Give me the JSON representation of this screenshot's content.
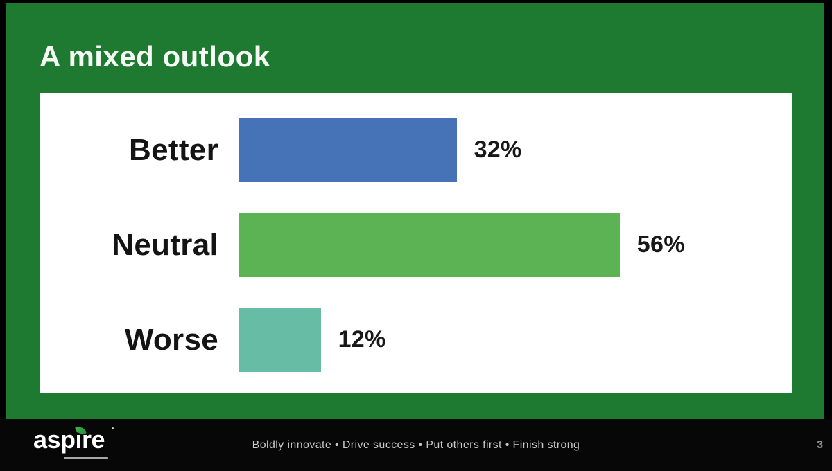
{
  "slide": {
    "title": "A mixed outlook"
  },
  "chart_data": {
    "type": "bar",
    "orientation": "horizontal",
    "title": "A mixed outlook",
    "categories": [
      "Better",
      "Neutral",
      "Worse"
    ],
    "values": [
      32,
      56,
      12
    ],
    "value_labels": [
      "32%",
      "56%",
      "12%"
    ],
    "bar_colors": [
      "#4673b8",
      "#5cb354",
      "#67bca5"
    ],
    "xlabel": "",
    "ylabel": "",
    "xlim": [
      0,
      60
    ],
    "grid": false,
    "legend": false
  },
  "footer": {
    "logo_text": "aspire",
    "motto": "Boldly innovate  •  Drive success  •  Put others first  •  Finish strong",
    "page_number": "3"
  },
  "colors": {
    "background_green": "#1e7a30",
    "panel_white": "#ffffff",
    "frame_black": "#000000",
    "footer_black": "#070707",
    "title_text": "#f5faf5",
    "bar_blue": "#4673b8",
    "bar_green": "#5cb354",
    "bar_teal": "#67bca5",
    "label_text": "#141414",
    "motto_gray": "#c8c8c8",
    "leaf_green": "#45b24a"
  }
}
